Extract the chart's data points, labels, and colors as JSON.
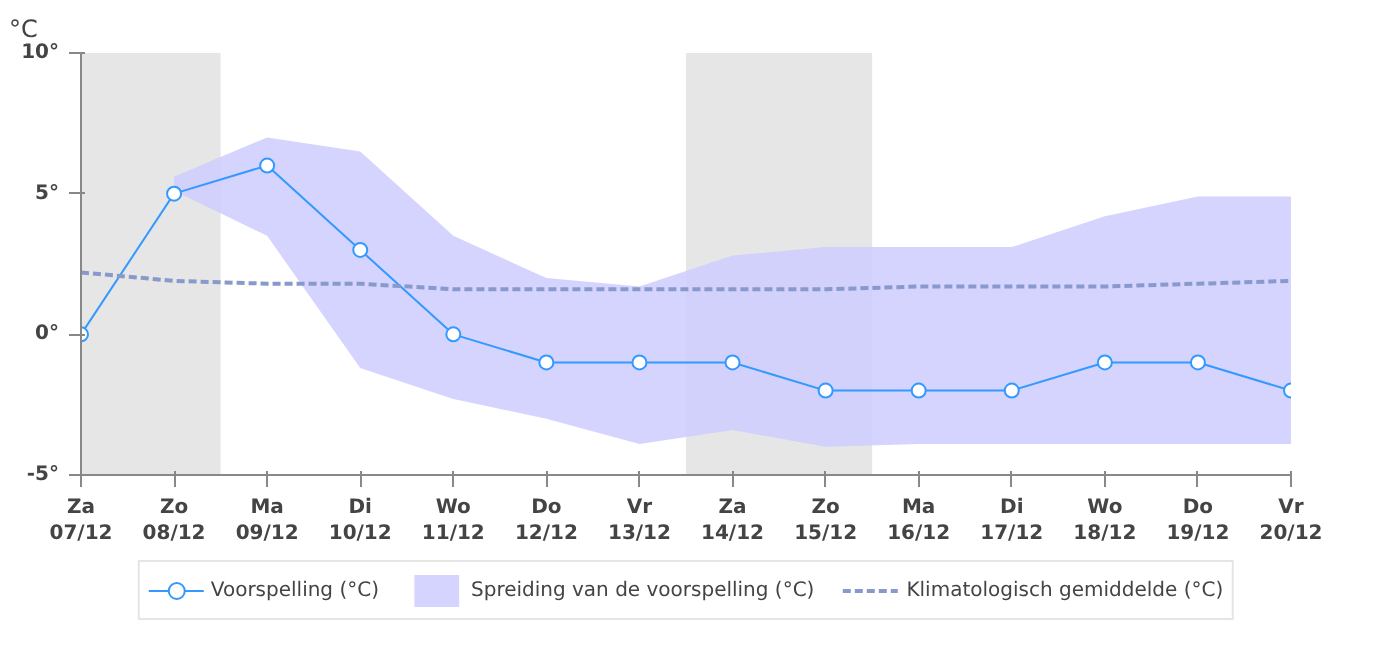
{
  "chart_data": {
    "type": "line",
    "ylabel": "°C",
    "categories": [
      "Za\n07/12",
      "Zo\n08/12",
      "Ma\n09/12",
      "Di\n10/12",
      "Wo\n11/12",
      "Do\n12/12",
      "Vr\n13/12",
      "Za\n14/12",
      "Zo\n15/12",
      "Ma\n16/12",
      "Di\n17/12",
      "Wo\n18/12",
      "Do\n19/12",
      "Vr\n20/12"
    ],
    "series": [
      {
        "name": "Voorspelling (°C)",
        "color": "#3399ff",
        "line_style": "solid",
        "marker": "circle",
        "values": [
          0,
          5,
          6,
          3,
          0,
          -1,
          -1,
          -1,
          -2,
          -2,
          -2,
          -1,
          -1,
          -2
        ]
      },
      {
        "name": "Spreiding van de voorspelling (°C)",
        "type": "area",
        "color": "#ccccff",
        "values": [
          null,
          null,
          null,
          null,
          null,
          null,
          null,
          null,
          null,
          null,
          null,
          null,
          null,
          null
        ],
        "lower": [
          null,
          5.1,
          3.5,
          -1.2,
          -2.3,
          -3.0,
          -3.9,
          -3.4,
          -4.0,
          -3.9,
          -3.9,
          -3.9,
          -3.9,
          -3.9
        ],
        "upper": [
          null,
          5.6,
          7.0,
          6.5,
          3.5,
          2.0,
          1.7,
          2.8,
          3.1,
          3.1,
          3.1,
          4.2,
          4.9,
          4.9
        ]
      },
      {
        "name": "Klimatologisch gemiddelde (°C)",
        "color": "#8899cc",
        "line_style": "dashed",
        "marker": "none",
        "values": [
          2.2,
          1.9,
          1.8,
          1.8,
          1.6,
          1.6,
          1.6,
          1.6,
          1.6,
          1.7,
          1.7,
          1.7,
          1.8,
          1.9
        ]
      }
    ],
    "bands": [
      {
        "axis": "x",
        "from": "Za\n07/12",
        "to": "Zo\n08/12",
        "color": "#e6e6e6"
      },
      {
        "axis": "x",
        "from": "Za\n14/12",
        "to": "Zo\n15/12",
        "color": "#e6e6e6"
      }
    ],
    "ylim": [
      -5,
      10
    ],
    "yticks": [
      {
        "value": -5,
        "label": "-5°"
      },
      {
        "value": 0,
        "label": "0°"
      },
      {
        "value": 5,
        "label": "5°"
      },
      {
        "value": 10,
        "label": "10°"
      }
    ],
    "grid": false,
    "legend": "bottom"
  }
}
